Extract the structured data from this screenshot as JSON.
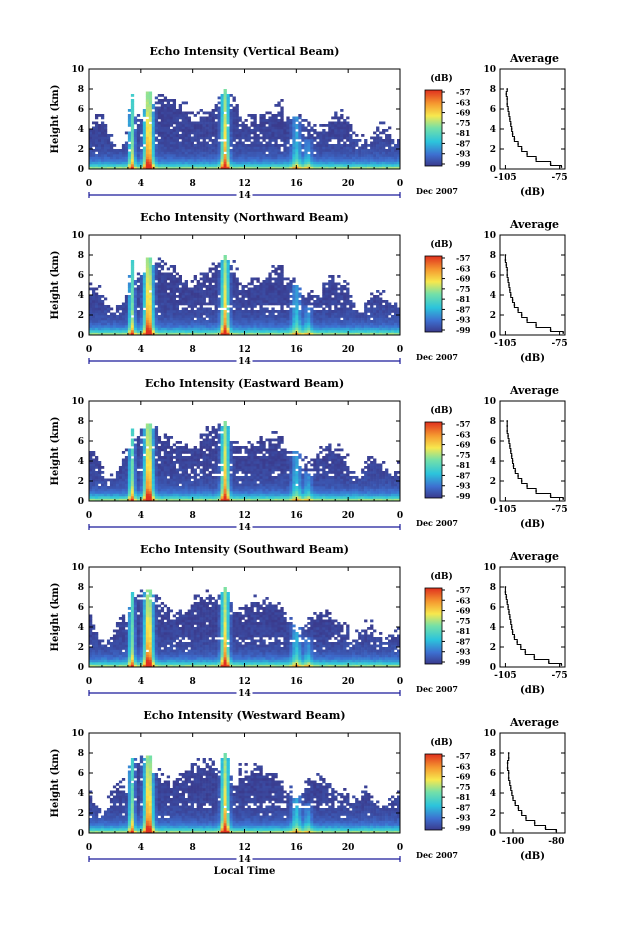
{
  "figure": {
    "xlabel": "Local Time",
    "date_label": "Dec 2007",
    "day_marker": "14",
    "colorbar_label": "(dB)",
    "colorbar_ticks": [
      "-57",
      "-63",
      "-69",
      "-75",
      "-81",
      "-87",
      "-93",
      "-99"
    ],
    "colors": {
      "blank": "#ffffff",
      "low": "#3d3d9e",
      "mid": "#2cc4dc",
      "high": "#f7e84e",
      "max": "#e0301e",
      "axis": "#000000",
      "day_bar": "#1a1a9a"
    }
  },
  "chart_data": [
    {
      "type": "heatmap",
      "title": "Echo Intensity (Vertical Beam)",
      "xlabel": "",
      "ylabel": "Height (km)",
      "x_ticks": [
        "0",
        "4",
        "8",
        "12",
        "16",
        "20",
        "0"
      ],
      "y_ticks": [
        "0",
        "2",
        "4",
        "6",
        "8",
        "10"
      ],
      "xlim": [
        0,
        24
      ],
      "ylim": [
        0,
        10
      ],
      "color_range_db": [
        -99,
        -57
      ],
      "profile": {
        "type": "line",
        "title": "Average",
        "xlabel": "(dB)",
        "x_ticks": [
          "-105",
          "-75"
        ],
        "xlim": [
          -108,
          -72
        ],
        "y_ticks": [
          "0",
          "2",
          "4",
          "6",
          "8",
          "10"
        ],
        "ylim": [
          0,
          10
        ],
        "height_km": [
          0.2,
          0.5,
          1,
          1.5,
          2,
          2.5,
          3,
          3.5,
          4,
          4.5,
          5,
          5.5,
          6,
          6.5,
          7,
          7.5,
          8
        ],
        "db": [
          -74,
          -80,
          -88,
          -93,
          -96,
          -98,
          -100,
          -101,
          -101.5,
          -102,
          -102.5,
          -103,
          -103.5,
          -104,
          -104,
          -104.5,
          -104
        ]
      }
    },
    {
      "type": "heatmap",
      "title": "Echo Intensity (Northward Beam)",
      "xlabel": "",
      "ylabel": "Height (km)",
      "x_ticks": [
        "0",
        "4",
        "8",
        "12",
        "16",
        "20",
        "0"
      ],
      "y_ticks": [
        "0",
        "2",
        "4",
        "6",
        "8",
        "10"
      ],
      "xlim": [
        0,
        24
      ],
      "ylim": [
        0,
        10
      ],
      "color_range_db": [
        -99,
        -57
      ],
      "profile": {
        "type": "line",
        "title": "Average",
        "xlabel": "(dB)",
        "x_ticks": [
          "-105",
          "-75"
        ],
        "xlim": [
          -108,
          -72
        ],
        "y_ticks": [
          "0",
          "2",
          "4",
          "6",
          "8",
          "10"
        ],
        "ylim": [
          0,
          10
        ],
        "height_km": [
          0.2,
          0.5,
          1,
          1.5,
          2,
          2.5,
          3,
          3.5,
          4,
          4.5,
          5,
          5.5,
          6,
          6.5,
          7,
          7.5,
          8
        ],
        "db": [
          -73,
          -80,
          -88,
          -93,
          -96,
          -98,
          -100,
          -101,
          -102,
          -102.5,
          -103,
          -103.5,
          -104,
          -104,
          -104.5,
          -105,
          -105
        ]
      }
    },
    {
      "type": "heatmap",
      "title": "Echo Intensity (Eastward Beam)",
      "xlabel": "",
      "ylabel": "Height (km)",
      "x_ticks": [
        "0",
        "4",
        "8",
        "12",
        "16",
        "20",
        "0"
      ],
      "y_ticks": [
        "0",
        "2",
        "4",
        "6",
        "8",
        "10"
      ],
      "xlim": [
        0,
        24
      ],
      "ylim": [
        0,
        10
      ],
      "color_range_db": [
        -99,
        -57
      ],
      "profile": {
        "type": "line",
        "title": "Average",
        "xlabel": "(dB)",
        "x_ticks": [
          "-105",
          "-75"
        ],
        "xlim": [
          -108,
          -72
        ],
        "y_ticks": [
          "0",
          "2",
          "4",
          "6",
          "8",
          "10"
        ],
        "ylim": [
          0,
          10
        ],
        "height_km": [
          0.2,
          0.5,
          1,
          1.5,
          2,
          2.5,
          3,
          3.5,
          4,
          4.5,
          5,
          5.5,
          6,
          6.5,
          7,
          7.5,
          8
        ],
        "db": [
          -73,
          -80,
          -88,
          -93,
          -96,
          -98,
          -99.5,
          -100.5,
          -101,
          -101.5,
          -102,
          -102.5,
          -103,
          -103.5,
          -104,
          -104,
          -104
        ]
      }
    },
    {
      "type": "heatmap",
      "title": "Echo Intensity (Southward Beam)",
      "xlabel": "",
      "ylabel": "Height (km)",
      "x_ticks": [
        "0",
        "4",
        "8",
        "12",
        "16",
        "20",
        "0"
      ],
      "y_ticks": [
        "0",
        "2",
        "4",
        "6",
        "8",
        "10"
      ],
      "xlim": [
        0,
        24
      ],
      "ylim": [
        0,
        10
      ],
      "color_range_db": [
        -99,
        -57
      ],
      "profile": {
        "type": "line",
        "title": "Average",
        "xlabel": "(dB)",
        "x_ticks": [
          "-105",
          "-75"
        ],
        "xlim": [
          -108,
          -72
        ],
        "y_ticks": [
          "0",
          "2",
          "4",
          "6",
          "8",
          "10"
        ],
        "ylim": [
          0,
          10
        ],
        "height_km": [
          0.2,
          0.5,
          1,
          1.5,
          2,
          2.5,
          3,
          3.5,
          4,
          4.5,
          5,
          5.5,
          6,
          6.5,
          7,
          7.5,
          8
        ],
        "db": [
          -74,
          -81,
          -89,
          -94,
          -96.5,
          -98.5,
          -100,
          -101,
          -101.5,
          -102,
          -102.5,
          -103,
          -103.5,
          -104,
          -104.5,
          -105,
          -105
        ]
      }
    },
    {
      "type": "heatmap",
      "title": "Echo Intensity (Westward Beam)",
      "xlabel": "Local Time",
      "ylabel": "Height (km)",
      "x_ticks": [
        "0",
        "4",
        "8",
        "12",
        "16",
        "20",
        "0"
      ],
      "y_ticks": [
        "0",
        "2",
        "4",
        "6",
        "8",
        "10"
      ],
      "xlim": [
        0,
        24
      ],
      "ylim": [
        0,
        10
      ],
      "color_range_db": [
        -99,
        -57
      ],
      "profile": {
        "type": "line",
        "title": "Average",
        "xlabel": "(dB)",
        "x_ticks": [
          "-100",
          "-80"
        ],
        "xlim": [
          -106,
          -76
        ],
        "y_ticks": [
          "0",
          "2",
          "4",
          "6",
          "8",
          "10"
        ],
        "ylim": [
          0,
          10
        ],
        "height_km": [
          0.2,
          0.5,
          1,
          1.5,
          2,
          2.5,
          3,
          3.5,
          4,
          4.5,
          5,
          5.5,
          6,
          6.5,
          7,
          7.5,
          8
        ],
        "db": [
          -80,
          -85,
          -90,
          -94,
          -96,
          -97.5,
          -99,
          -100,
          -100.5,
          -101,
          -101.5,
          -102,
          -102,
          -102.5,
          -102.5,
          -102,
          -102
        ]
      }
    }
  ]
}
